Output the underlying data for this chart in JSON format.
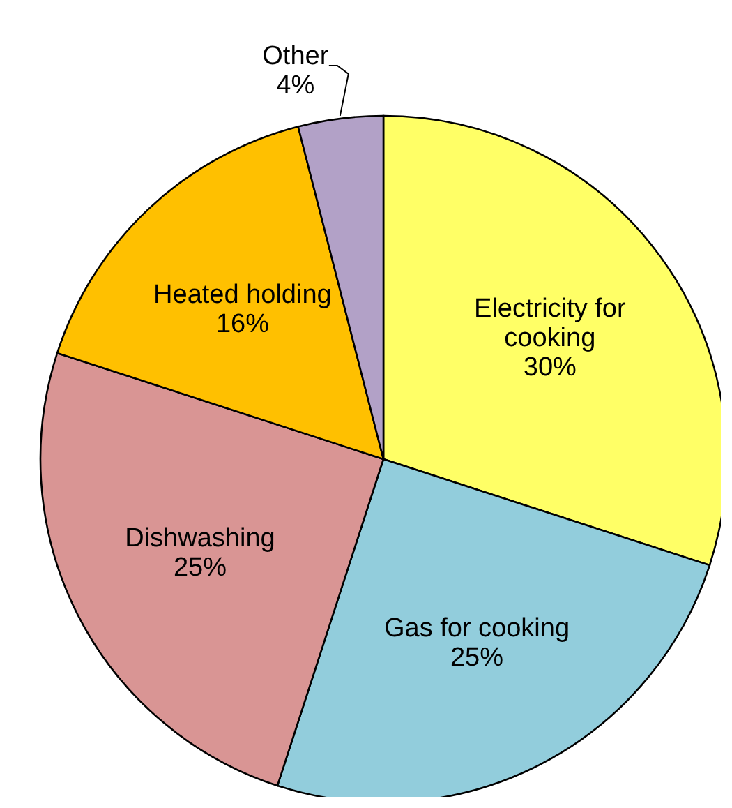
{
  "chart_data": {
    "type": "pie",
    "categories": [
      "Electricity for cooking",
      "Gas for cooking",
      "Dishwashing",
      "Heated holding",
      "Other"
    ],
    "values": [
      30,
      25,
      25,
      16,
      4
    ],
    "value_labels": [
      "30%",
      "25%",
      "25%",
      "16%",
      "4%"
    ],
    "colors": [
      "#ffff66",
      "#92cddc",
      "#d99594",
      "#ffc000",
      "#b2a1c7"
    ],
    "legend": false
  }
}
